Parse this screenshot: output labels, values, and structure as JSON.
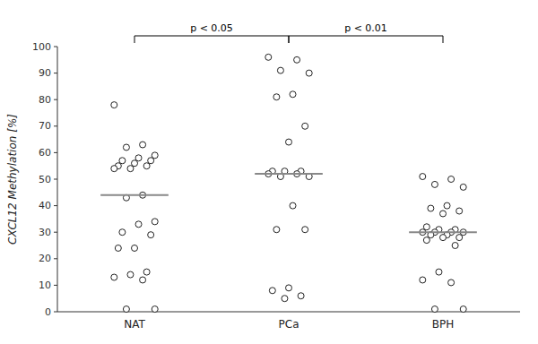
{
  "chart_data": {
    "type": "strip",
    "y_label": "CXCL12 Methylation [%]",
    "categories": [
      "NAT",
      "PCa",
      "BPH"
    ],
    "values": [
      [
        78,
        63,
        62,
        59,
        58,
        57,
        57,
        56,
        55,
        55,
        54,
        54,
        44,
        43,
        34,
        33,
        30,
        29,
        24,
        24,
        15,
        14,
        13,
        12,
        1,
        1
      ],
      [
        96,
        95,
        91,
        90,
        82,
        81,
        70,
        64,
        53,
        53,
        53,
        52,
        52,
        51,
        51,
        40,
        31,
        31,
        9,
        8,
        6,
        5
      ],
      [
        51,
        50,
        48,
        47,
        40,
        39,
        38,
        37,
        32,
        31,
        31,
        30,
        30,
        30,
        30,
        29,
        29,
        28,
        28,
        27,
        25,
        15,
        12,
        11,
        1,
        1
      ]
    ],
    "medians": [
      44,
      52,
      30
    ],
    "ylim": [
      0,
      100
    ],
    "yticks": [
      0,
      10,
      20,
      30,
      40,
      50,
      60,
      70,
      80,
      90,
      100
    ],
    "grid": false,
    "annotations": [
      {
        "from": "NAT",
        "to": "PCa",
        "text": "p < 0.05"
      },
      {
        "from": "PCa",
        "to": "BPH",
        "text": "p < 0.01"
      }
    ]
  }
}
